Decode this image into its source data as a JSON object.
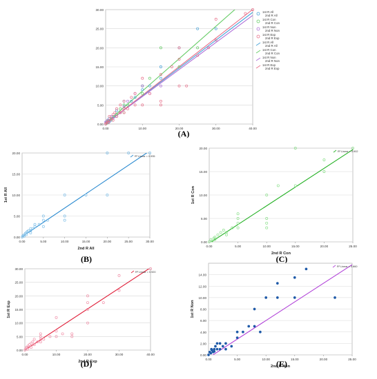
{
  "figure": {
    "panels": [
      "(A)",
      "(B)",
      "(C)",
      "(D)",
      "(E)"
    ]
  },
  "chart_data": [
    {
      "panel": "(A)",
      "type": "scatter",
      "xlim": [
        0,
        40
      ],
      "ylim": [
        0,
        30
      ],
      "x_ticks": [
        "0.00",
        "10.00",
        "20.00",
        "30.00",
        "40.00"
      ],
      "y_ticks": [
        "0.00",
        "5.00",
        "10.00",
        "15.00",
        "20.00",
        "25.00",
        "30.00"
      ],
      "grid": true,
      "legend_position": "top-right",
      "legend": [
        "1st R All",
        "2nd R All",
        "1st R Con",
        "2nd R Con",
        "1st R Non",
        "2nd R Non",
        "1st R Exp",
        "2nd R Exp",
        "1st R All",
        "2nd R All",
        "1st R Con",
        "2nd R Con",
        "1st R Non",
        "2nd R Non",
        "1st R Exp",
        "2nd R Exp"
      ],
      "colors": {
        "all": "#4aa3d8",
        "con": "#66cc66",
        "non": "#b070d8",
        "exp": "#e8708a"
      },
      "series": [
        {
          "name": "1st R All",
          "kind": "points",
          "color": "#4aa3d8",
          "points": [
            [
              0,
              0
            ],
            [
              0.2,
              0.5
            ],
            [
              0.5,
              0.3
            ],
            [
              0.8,
              1
            ],
            [
              1,
              0.6
            ],
            [
              1,
              1.5
            ],
            [
              1.5,
              1
            ],
            [
              2,
              1.5
            ],
            [
              2,
              2
            ],
            [
              2.5,
              2
            ],
            [
              3,
              2.5
            ],
            [
              3,
              3.5
            ],
            [
              4,
              3
            ],
            [
              5,
              4
            ],
            [
              5,
              5
            ],
            [
              5,
              6
            ],
            [
              6,
              5
            ],
            [
              7,
              6
            ],
            [
              8,
              7
            ],
            [
              10,
              9
            ],
            [
              10,
              10
            ],
            [
              12,
              10
            ],
            [
              15,
              15
            ],
            [
              15,
              12
            ],
            [
              20,
              20
            ],
            [
              25,
              25
            ],
            [
              30,
              25
            ]
          ]
        },
        {
          "name": "1st R Con",
          "kind": "points",
          "color": "#66cc66",
          "points": [
            [
              0.3,
              0.2
            ],
            [
              0.6,
              0.8
            ],
            [
              1,
              1
            ],
            [
              1.5,
              1.2
            ],
            [
              2,
              2
            ],
            [
              3,
              2.5
            ],
            [
              4,
              4
            ],
            [
              5,
              5
            ],
            [
              5,
              3
            ],
            [
              6,
              5
            ],
            [
              10,
              8
            ],
            [
              10,
              10
            ],
            [
              12,
              12
            ],
            [
              15,
              20
            ],
            [
              20,
              15
            ],
            [
              25,
              20
            ]
          ]
        },
        {
          "name": "1st R Non",
          "kind": "points",
          "color": "#b070d8",
          "points": [
            [
              0,
              0.5
            ],
            [
              0.5,
              1
            ],
            [
              1,
              0.8
            ],
            [
              1.5,
              2
            ],
            [
              2,
              1.5
            ],
            [
              3,
              2
            ],
            [
              4,
              3
            ],
            [
              5,
              4.5
            ],
            [
              6,
              6
            ],
            [
              8,
              8
            ],
            [
              10,
              10
            ],
            [
              12,
              8
            ],
            [
              15,
              10
            ]
          ]
        },
        {
          "name": "1st R Exp",
          "kind": "points",
          "color": "#e8708a",
          "points": [
            [
              0,
              0
            ],
            [
              0.2,
              0.3
            ],
            [
              0.5,
              0.6
            ],
            [
              0.8,
              0.4
            ],
            [
              1,
              1
            ],
            [
              1,
              2
            ],
            [
              1.5,
              1.5
            ],
            [
              2,
              1
            ],
            [
              2,
              2.5
            ],
            [
              2.5,
              3
            ],
            [
              3,
              2
            ],
            [
              3,
              4
            ],
            [
              4,
              5
            ],
            [
              4,
              3
            ],
            [
              5,
              3
            ],
            [
              5,
              4
            ],
            [
              5,
              6
            ],
            [
              6,
              4
            ],
            [
              7,
              7
            ],
            [
              8,
              8
            ],
            [
              8,
              5
            ],
            [
              10,
              5
            ],
            [
              10,
              12
            ],
            [
              12,
              8
            ],
            [
              15,
              5
            ],
            [
              15,
              6
            ],
            [
              15,
              13
            ],
            [
              18,
              15
            ],
            [
              20,
              17
            ],
            [
              20,
              10
            ],
            [
              20,
              20
            ],
            [
              22,
              10
            ],
            [
              25,
              18
            ],
            [
              28,
              20
            ],
            [
              30,
              22
            ],
            [
              30,
              27.5
            ],
            [
              38,
              29
            ],
            [
              40,
              30
            ]
          ]
        },
        {
          "name": "1st R All",
          "kind": "fit",
          "color": "#4aa3d8",
          "intercept": 0.1,
          "slope": 0.73
        },
        {
          "name": "1st R Con",
          "kind": "fit",
          "color": "#66cc66",
          "intercept": 0.15,
          "slope": 0.85
        },
        {
          "name": "1st R Non",
          "kind": "fit",
          "color": "#b070d8",
          "intercept": 0.1,
          "slope": 0.71
        },
        {
          "name": "1st R Exp",
          "kind": "fit",
          "color": "#e8708a",
          "intercept": 0.05,
          "slope": 0.75
        }
      ]
    },
    {
      "panel": "(B)",
      "type": "scatter",
      "xlabel": "2nd R All",
      "ylabel": "1st R All",
      "r2_label": "R² Linear = 0.935",
      "xlim": [
        0,
        30
      ],
      "ylim": [
        0,
        20
      ],
      "x_ticks": [
        "0.00",
        "5.00",
        "10.00",
        "15.00",
        "20.00",
        "25.00",
        "30.00"
      ],
      "y_ticks": [
        "0.00",
        "5.00",
        "10.00",
        "15.00",
        "20.00"
      ],
      "grid": true,
      "point_color": "#7fbfe8",
      "fit_color": "#2a8ad0",
      "fit": {
        "intercept": 0.1,
        "slope": 0.68
      },
      "points": [
        [
          0,
          0
        ],
        [
          0.2,
          0.3
        ],
        [
          0.4,
          0.5
        ],
        [
          0.5,
          0.2
        ],
        [
          0.8,
          0.9
        ],
        [
          1,
          1
        ],
        [
          1,
          0.6
        ],
        [
          1.2,
          1.3
        ],
        [
          1.5,
          1.5
        ],
        [
          2,
          1.5
        ],
        [
          2,
          2
        ],
        [
          2,
          1
        ],
        [
          2.5,
          2
        ],
        [
          3,
          2.5
        ],
        [
          3,
          3
        ],
        [
          4,
          3
        ],
        [
          5,
          5
        ],
        [
          5,
          4
        ],
        [
          5,
          2.5
        ],
        [
          6,
          4
        ],
        [
          10,
          5
        ],
        [
          10,
          4
        ],
        [
          10,
          10
        ],
        [
          15,
          10
        ],
        [
          20,
          10
        ],
        [
          20,
          20
        ],
        [
          25,
          20
        ],
        [
          30,
          20
        ]
      ]
    },
    {
      "panel": "(C)",
      "type": "scatter",
      "xlabel": "2nd R Con",
      "ylabel": "1st R Con",
      "r2_label": "R² Linear = 0.902",
      "xlim": [
        0,
        25
      ],
      "ylim": [
        0,
        20
      ],
      "x_ticks": [
        "0.00",
        "5.00",
        "10.00",
        "15.00",
        "20.00",
        "25.00"
      ],
      "y_ticks": [
        "0.00",
        "5.00",
        "10.00",
        "15.00",
        "20.00"
      ],
      "grid": true,
      "point_color": "#8ee08e",
      "fit_color": "#22b022",
      "fit": {
        "intercept": -0.3,
        "slope": 0.8
      },
      "points": [
        [
          0,
          0
        ],
        [
          0.3,
          0.5
        ],
        [
          0.5,
          0.2
        ],
        [
          0.8,
          0.8
        ],
        [
          1,
          1
        ],
        [
          1,
          0.5
        ],
        [
          1.5,
          1.5
        ],
        [
          2,
          2
        ],
        [
          2.5,
          2.5
        ],
        [
          3,
          1.5
        ],
        [
          3,
          2
        ],
        [
          4,
          3
        ],
        [
          5,
          5
        ],
        [
          5,
          6
        ],
        [
          5,
          4
        ],
        [
          5,
          3
        ],
        [
          10,
          5
        ],
        [
          10,
          4
        ],
        [
          10,
          3
        ],
        [
          10,
          10
        ],
        [
          12,
          12
        ],
        [
          15,
          20
        ],
        [
          15,
          12
        ],
        [
          20,
          17.5
        ],
        [
          20,
          15
        ],
        [
          25,
          20
        ]
      ]
    },
    {
      "panel": "(D)",
      "type": "scatter",
      "xlabel": "2nd R Exp",
      "ylabel": "1st R Exp",
      "r2_label": "R² Linear = 0.920",
      "xlim": [
        0,
        40
      ],
      "ylim": [
        0,
        30
      ],
      "x_ticks": [
        "0.00",
        "10.00",
        "20.00",
        "30.00",
        "40.00"
      ],
      "y_ticks": [
        "0.00",
        "5.00",
        "10.00",
        "15.00",
        "20.00",
        "25.00",
        "30.00"
      ],
      "grid": true,
      "point_color": "#f090a8",
      "fit_color": "#e0203a",
      "fit": {
        "intercept": 0.0,
        "slope": 0.76
      },
      "points": [
        [
          0,
          0
        ],
        [
          0.3,
          0.5
        ],
        [
          0.5,
          1
        ],
        [
          0.8,
          0.3
        ],
        [
          1,
          1
        ],
        [
          1,
          1.5
        ],
        [
          1.5,
          2
        ],
        [
          2,
          1
        ],
        [
          2,
          2.5
        ],
        [
          2.5,
          3
        ],
        [
          3,
          2
        ],
        [
          3,
          4
        ],
        [
          4,
          3
        ],
        [
          5,
          3
        ],
        [
          5,
          4
        ],
        [
          5,
          5
        ],
        [
          5,
          6
        ],
        [
          6,
          4
        ],
        [
          8,
          5
        ],
        [
          10,
          5
        ],
        [
          10,
          7
        ],
        [
          10,
          12
        ],
        [
          12,
          6
        ],
        [
          15,
          5
        ],
        [
          15,
          6
        ],
        [
          20,
          10
        ],
        [
          20,
          15
        ],
        [
          20,
          17.5
        ],
        [
          20,
          20
        ],
        [
          25,
          17.5
        ],
        [
          30,
          22
        ],
        [
          30,
          27.5
        ],
        [
          40,
          30
        ]
      ]
    },
    {
      "panel": "(E)",
      "type": "scatter",
      "xlabel": "2nd R Non",
      "ylabel": "1st R Non",
      "r2_label": "R² Linear = 0.860",
      "xlim": [
        0,
        25
      ],
      "ylim": [
        0,
        16
      ],
      "x_ticks": [
        "0.00",
        "5.00",
        "10.00",
        "15.00",
        "20.00",
        "25.00"
      ],
      "y_ticks": [
        "0.00",
        "2.00",
        "4.00",
        "6.00",
        "8.00",
        "10.00",
        "12.00",
        "14.00"
      ],
      "grid": true,
      "point_color": "#1f5aa8",
      "fit_color": "#b040d8",
      "fit": {
        "intercept": -0.5,
        "slope": 0.65
      },
      "points": [
        [
          0,
          0
        ],
        [
          0.2,
          0.5
        ],
        [
          0.4,
          0.3
        ],
        [
          0.5,
          1
        ],
        [
          0.6,
          0.8
        ],
        [
          0.8,
          0.5
        ],
        [
          1,
          1
        ],
        [
          1,
          0.6
        ],
        [
          1.2,
          1.5
        ],
        [
          1.5,
          1
        ],
        [
          1.5,
          2
        ],
        [
          2,
          1
        ],
        [
          2,
          2
        ],
        [
          2.5,
          1.5
        ],
        [
          3,
          1
        ],
        [
          3,
          2
        ],
        [
          4,
          1.5
        ],
        [
          5,
          3
        ],
        [
          5,
          4
        ],
        [
          6,
          4
        ],
        [
          7,
          5
        ],
        [
          8,
          8
        ],
        [
          8,
          5
        ],
        [
          9,
          4
        ],
        [
          10,
          10
        ],
        [
          12,
          12.5
        ],
        [
          12,
          10
        ],
        [
          15,
          13.5
        ],
        [
          15,
          10
        ],
        [
          17,
          15
        ],
        [
          22,
          10
        ]
      ]
    }
  ]
}
